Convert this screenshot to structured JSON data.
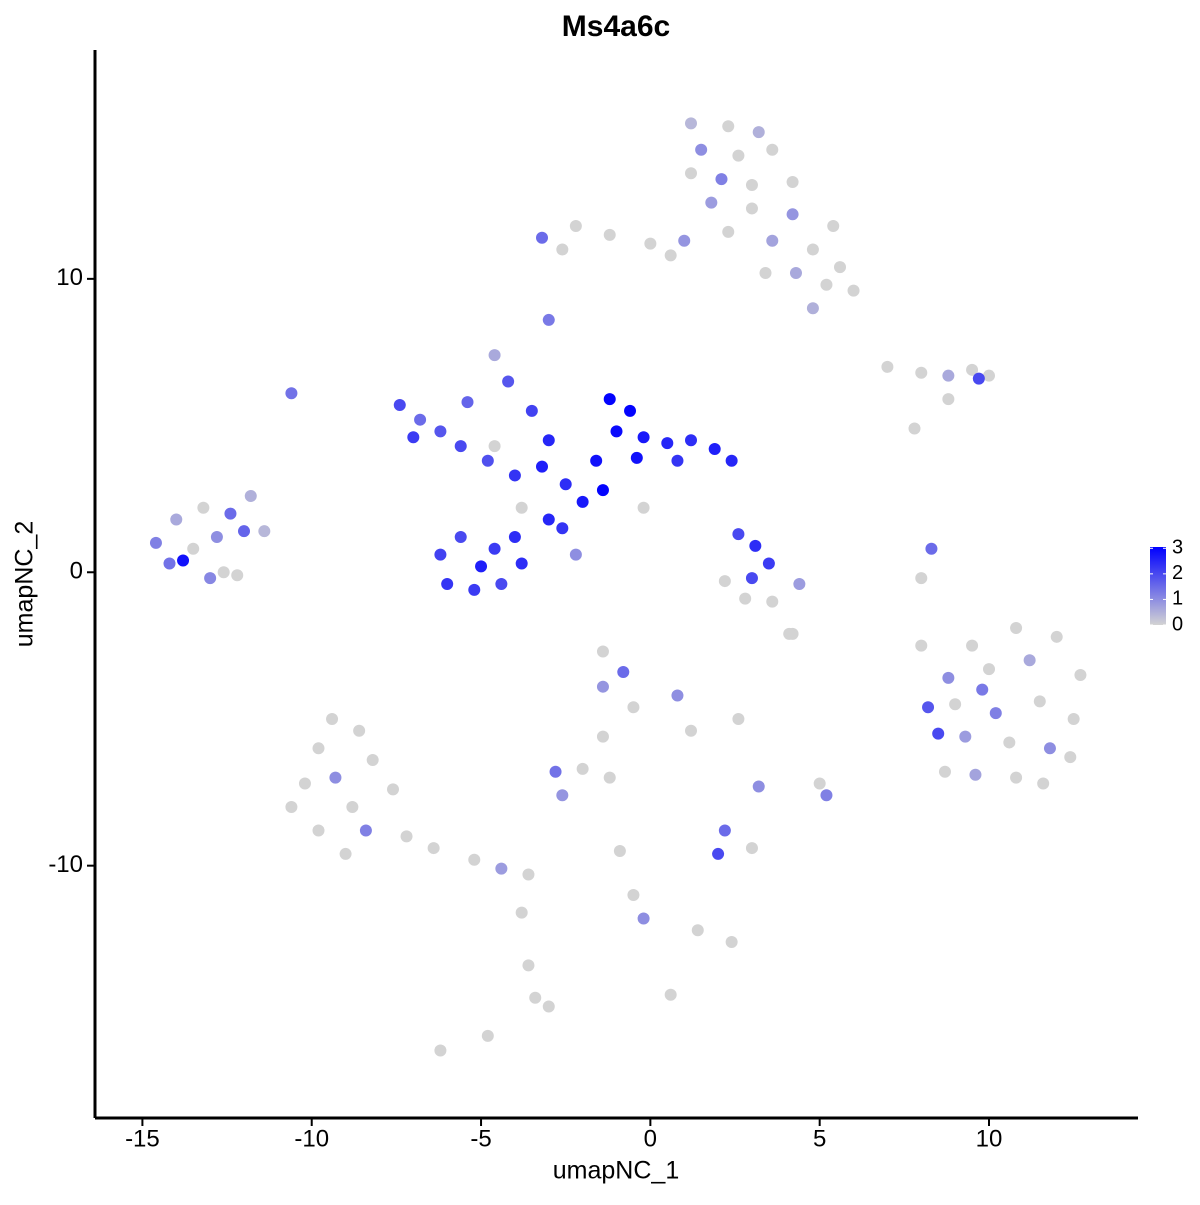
{
  "chart_data": {
    "type": "scatter",
    "title": "Ms4a6c",
    "xlabel": "umapNC_1",
    "ylabel": "umapNC_2",
    "xlim": [
      -16.4,
      14.4
    ],
    "ylim": [
      -18.6,
      17.8
    ],
    "xticks": [
      -15,
      -10,
      -5,
      0,
      5,
      10
    ],
    "yticks": [
      -10,
      0,
      10
    ],
    "colorscale": {
      "colors": [
        "#d3d3d3",
        "#0000ff"
      ],
      "lim": [
        0,
        3.05
      ],
      "ticks": [
        0,
        1,
        2,
        3
      ]
    },
    "series": [
      {
        "x": [
          1.2,
          2.3,
          3.2,
          1.5,
          2.6,
          3.6,
          1.2,
          2.1,
          3.0,
          4.2,
          1.8,
          3.0,
          4.2,
          5.4,
          2.3,
          3.6,
          4.8,
          1.0,
          0.0,
          -1.2,
          -2.2,
          -3.2,
          -2.6,
          0.6,
          4.3,
          5.2,
          6.0,
          4.8,
          5.6,
          3.4,
          -3.0,
          -4.6,
          -4.2,
          -10.6,
          7.0,
          8.0,
          8.8,
          9.5,
          10.0,
          9.7,
          8.8,
          7.8,
          -7.4,
          -6.8,
          -7.0,
          -6.2,
          -5.6,
          -4.8,
          -5.4,
          -4.0,
          -3.2,
          -2.5,
          -3.5,
          -3.0,
          -1.6,
          -1.2,
          -0.6,
          -1.0,
          -0.2,
          0.5,
          1.2,
          1.9,
          2.4,
          0.8,
          -0.4,
          -2.0,
          -3.0,
          -3.8,
          -4.0,
          -4.6,
          -5.6,
          -6.2,
          -6.0,
          -5.2,
          -4.4,
          -3.8,
          -5.0,
          -2.6,
          -2.2,
          -1.4,
          -0.2,
          -4.6,
          2.6,
          3.1,
          3.5,
          3.0,
          2.2,
          2.8,
          3.6,
          4.4,
          4.2,
          -14.6,
          -14.0,
          -13.2,
          -12.4,
          -11.8,
          -14.2,
          -13.5,
          -12.8,
          -12.0,
          -11.4,
          -13.8,
          -12.6,
          -13.0,
          -12.2,
          9.5,
          10.8,
          12.0,
          12.7,
          8.8,
          10.0,
          11.2,
          8.2,
          9.0,
          10.2,
          11.5,
          12.5,
          8.5,
          9.3,
          10.6,
          11.8,
          12.4,
          8.7,
          9.6,
          10.8,
          11.6,
          9.8,
          -9.4,
          -8.6,
          -9.8,
          -8.2,
          -9.3,
          -10.2,
          -7.6,
          -8.8,
          -10.6,
          -9.8,
          -8.4,
          -7.2,
          -6.4,
          -5.2,
          -4.4,
          -3.6,
          -9.0,
          -3.8,
          -3.6,
          -3.4,
          -3.0,
          -6.2,
          -4.8,
          -1.4,
          -0.8,
          -1.4,
          -0.5,
          0.8,
          1.2,
          -1.4,
          -2.0,
          -2.8,
          -2.6,
          -1.2,
          2.6,
          3.2,
          5.0,
          5.2,
          2.2,
          2.0,
          3.0,
          -0.9,
          -0.5,
          -0.2,
          1.4,
          2.4,
          0.6,
          8.0,
          8.3,
          8.0,
          4.1
        ],
        "values": [
          15.3,
          15.2,
          15.0,
          14.4,
          14.2,
          14.4,
          13.6,
          13.4,
          13.2,
          13.3,
          12.6,
          12.4,
          12.2,
          11.8,
          11.6,
          11.3,
          11.0,
          11.3,
          11.2,
          11.5,
          11.8,
          11.4,
          11.0,
          10.8,
          10.2,
          9.8,
          9.6,
          9.0,
          10.4,
          10.2,
          8.6,
          7.4,
          6.5,
          6.1,
          7.0,
          6.8,
          6.7,
          6.9,
          6.7,
          6.6,
          5.9,
          4.9,
          5.7,
          5.2,
          4.6,
          4.8,
          4.3,
          3.8,
          5.8,
          3.3,
          3.6,
          3.0,
          5.5,
          4.5,
          3.8,
          5.9,
          5.5,
          4.8,
          4.6,
          4.4,
          4.5,
          4.2,
          3.8,
          3.8,
          3.9,
          2.4,
          1.8,
          2.2,
          1.2,
          0.8,
          1.2,
          0.6,
          -0.4,
          -0.6,
          -0.4,
          0.3,
          0.2,
          1.5,
          0.6,
          2.8,
          2.2,
          4.3,
          1.3,
          0.9,
          0.3,
          -0.2,
          -0.3,
          -0.9,
          -1.0,
          -0.4,
          -2.1,
          1.0,
          1.8,
          2.2,
          2.0,
          2.6,
          0.3,
          0.8,
          1.2,
          1.4,
          1.4,
          0.4,
          0.0,
          -0.2,
          -0.1,
          -2.5,
          -1.9,
          -2.2,
          -3.5,
          -3.6,
          -3.3,
          -3.0,
          -4.6,
          -4.5,
          -4.8,
          -4.4,
          -5.0,
          -5.5,
          -5.6,
          -5.8,
          -6.0,
          -6.3,
          -6.8,
          -6.9,
          -7.0,
          -7.2,
          -4.0,
          -5.0,
          -5.4,
          -6.0,
          -6.4,
          -7.0,
          -7.2,
          -7.4,
          -8.0,
          -8.0,
          -8.8,
          -8.8,
          -9.0,
          -9.4,
          -9.8,
          -10.1,
          -10.3,
          -9.6,
          -11.6,
          -13.4,
          -14.5,
          -14.8,
          -16.3,
          -15.8,
          -2.7,
          -3.4,
          -3.9,
          -4.6,
          -4.2,
          -5.4,
          -5.6,
          -6.7,
          -6.8,
          -7.6,
          -7.0,
          -5.0,
          -7.3,
          -7.2,
          -7.6,
          -8.8,
          -9.6,
          -9.4,
          -9.5,
          -11.0,
          -11.8,
          -12.2,
          -12.6,
          -14.4,
          -0.2,
          0.8,
          -2.5,
          -2.1
        ],
        "expression": [
          0.4,
          0,
          0.5,
          1.0,
          0,
          0,
          0,
          1.2,
          0,
          0,
          0.8,
          0,
          0.9,
          0,
          0,
          0.7,
          0,
          0.9,
          0,
          0,
          0,
          1.5,
          0,
          0,
          0.6,
          0,
          0,
          0.5,
          0,
          0,
          1.3,
          0.6,
          1.8,
          1.4,
          0,
          0,
          0.6,
          0,
          0,
          2.0,
          0,
          0,
          2.0,
          1.5,
          2.2,
          1.8,
          2.0,
          1.9,
          1.6,
          2.3,
          2.6,
          2.4,
          2.1,
          2.5,
          2.8,
          3.0,
          3.0,
          2.9,
          2.7,
          2.5,
          2.4,
          2.6,
          2.5,
          2.3,
          2.8,
          2.7,
          2.5,
          0,
          2.4,
          2.2,
          2.0,
          2.1,
          2.3,
          2.2,
          2.0,
          2.4,
          2.6,
          2.3,
          1.0,
          3.0,
          0,
          0,
          2.0,
          2.4,
          2.2,
          2.0,
          0,
          0,
          0,
          0.8,
          0,
          1.2,
          0.6,
          0,
          1.5,
          0.5,
          1.4,
          0,
          1.0,
          1.6,
          0.4,
          2.8,
          0,
          1.1,
          0,
          0,
          0,
          0,
          0,
          1.0,
          0,
          0.6,
          1.8,
          0,
          1.2,
          0,
          0,
          2.0,
          0.8,
          0,
          1.0,
          0,
          0,
          0.7,
          0,
          0,
          1.3,
          0,
          0,
          0,
          0,
          1.0,
          0,
          0,
          0,
          0,
          0,
          1.2,
          0,
          0,
          0,
          0.8,
          0,
          0,
          0,
          0,
          0,
          0,
          0,
          0,
          0,
          1.5,
          0.9,
          0,
          1.0,
          0,
          0,
          0,
          1.4,
          0.9,
          0,
          0,
          1.0,
          0,
          1.2,
          1.5,
          2.0,
          0,
          0,
          0,
          1.0,
          0,
          0,
          0,
          0,
          1.5,
          0,
          0
        ]
      }
    ]
  }
}
